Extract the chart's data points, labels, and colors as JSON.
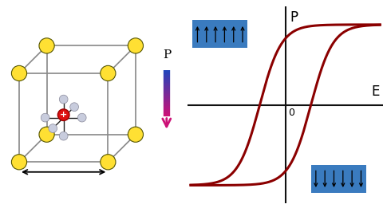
{
  "bg_color": "#ffffff",
  "hysteresis_color": "#8B0000",
  "hysteresis_lw": 2.2,
  "axis_color": "#111111",
  "blue_box_color": "#3a7bbf",
  "P_label": "P",
  "E_label": "E",
  "zero_label": "0",
  "crystal_grid_color": "#888888",
  "crystal_grid_lw": 1.2,
  "yellow_atom_color": "#FFE033",
  "yellow_atom_edge": "#555500",
  "gray_atom_color": "#C8CCDD",
  "gray_atom_edge": "#888899",
  "red_atom_color": "#DD1111",
  "red_atom_edge": "#990000",
  "double_arrow_color": "#000000",
  "mid_p_color_top": "#2244BB",
  "mid_p_color_bot": "#CC1177"
}
